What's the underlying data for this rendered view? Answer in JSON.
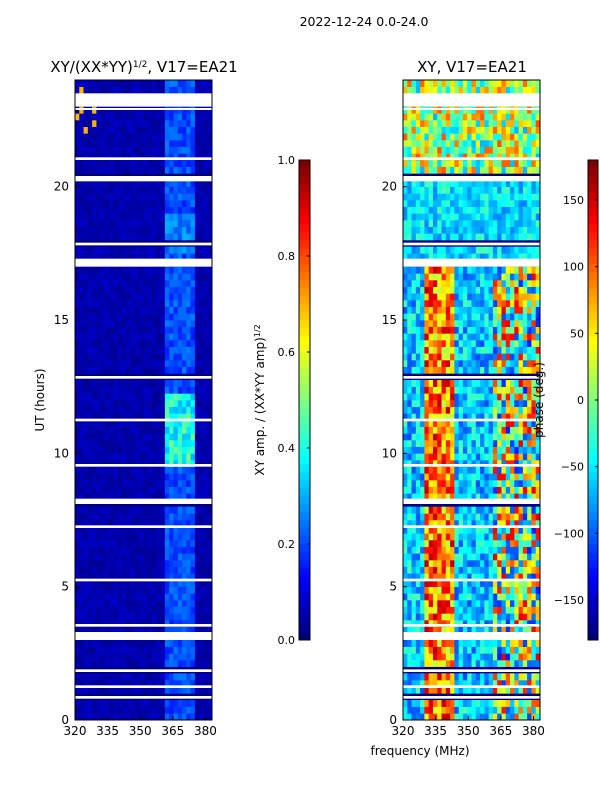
{
  "suptitle": "2022-12-24 0.0-24.0",
  "colors": {
    "jet": [
      "#00007f",
      "#0000ff",
      "#007fff",
      "#00ffff",
      "#7fff7f",
      "#ffff00",
      "#ff7f00",
      "#ff0000",
      "#7f0000"
    ],
    "gap": "#ffffff",
    "axis": "#000000"
  },
  "chart_data": [
    {
      "type": "heatmap",
      "title_prefix": "XY/(XX*YY)",
      "title_sup": "1/2",
      "title_suffix": ", V17=EA21",
      "xlabel": "",
      "ylabel": "UT (hours)",
      "xlim": [
        320,
        383
      ],
      "ylim": [
        0,
        24
      ],
      "xticks": [
        320,
        335,
        350,
        365,
        380
      ],
      "yticks": [
        0,
        5,
        10,
        15,
        20
      ],
      "colorbar": {
        "label_prefix": "XY amp. / (XX*YY amp)",
        "label_sup": "1/2",
        "range": [
          0.0,
          1.0
        ],
        "ticks": [
          0.0,
          0.2,
          0.4,
          0.6,
          0.8,
          1.0
        ],
        "tick_labels": [
          "0.0",
          "0.2",
          "0.4",
          "0.6",
          "0.8",
          "1.0"
        ]
      },
      "description": "normalized cross-correlation amplitude vs frequency and UT; mostly near 0 with a brighter band near 361-375 MHz (about 0.3-0.5 between 9.5 and 12 h), several flagged (blank) time ranges"
    },
    {
      "type": "heatmap",
      "title_prefix": "XY, V17=EA21",
      "title_sup": "",
      "title_suffix": "",
      "xlabel": "frequency (MHz)",
      "ylabel": "",
      "xlim": [
        320,
        383
      ],
      "ylim": [
        0,
        24
      ],
      "xticks": [
        320,
        335,
        350,
        365,
        380
      ],
      "yticks": [
        0,
        5,
        10,
        15,
        20
      ],
      "colorbar": {
        "label_prefix": "phase (deg.)",
        "label_sup": "",
        "range": [
          -180,
          180
        ],
        "ticks": [
          -150,
          -100,
          -50,
          0,
          50,
          100,
          150
        ],
        "tick_labels": [
          "−150",
          "−100",
          "−50",
          "0",
          "50",
          "100",
          "150"
        ]
      },
      "description": "cross-correlation phase vs frequency and UT; noisy phase with a coherent red band near 333-342 MHz and structured phase wraps above 362 MHz, same flagged time ranges as the amplitude panel"
    }
  ]
}
